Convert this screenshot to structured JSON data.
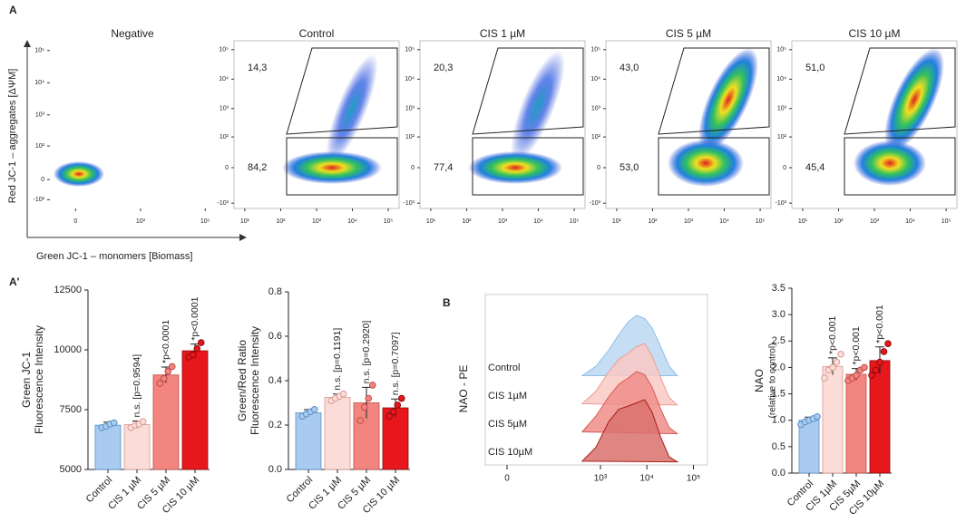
{
  "panel_labels": [
    "A",
    "A'",
    "B"
  ],
  "chart_data": [
    {
      "type": "flow",
      "title": "Negative",
      "xlabel": "Green JC-1 – monomers [Biomass]",
      "ylabel": "Red JC-1 – aggregates [ΔΨM]",
      "xscale": "biex",
      "xlim": [
        -200,
        200000
      ],
      "ylim": [
        -300,
        200000
      ],
      "xticks": [
        0,
        {
          "value": 1000,
          "label": "10³"
        },
        {
          "value": 100000,
          "label": "10⁵"
        }
      ],
      "yticks": [
        {
          "value": -100,
          "label": "-10²"
        },
        0,
        {
          "value": 100,
          "label": "10²"
        },
        {
          "value": 1000,
          "label": "10³"
        },
        {
          "value": 10000,
          "label": "10⁴"
        },
        {
          "value": 100000,
          "label": "10⁵"
        }
      ]
    },
    {
      "type": "flow",
      "title": "Control",
      "xscale": "log",
      "xlim": [
        5,
        200000
      ],
      "ylim": [
        -2000,
        200000
      ],
      "xticks": [
        {
          "value": 10,
          "label": "10¹"
        },
        {
          "value": 100,
          "label": "10²"
        },
        {
          "value": 1000,
          "label": "10³"
        },
        {
          "value": 10000,
          "label": "10⁴"
        },
        {
          "value": 100000,
          "label": "10⁵"
        }
      ],
      "yticks": [
        {
          "value": -1000,
          "label": "-10³"
        },
        0,
        {
          "value": 100,
          "label": "10²"
        },
        {
          "value": 1000,
          "label": "10³"
        },
        {
          "value": 10000,
          "label": "10⁴"
        },
        {
          "value": 100000,
          "label": "10⁵"
        }
      ],
      "gates": {
        "values": [
          14.3,
          84.2
        ],
        "value_labels": [
          "14,3",
          "84,2"
        ]
      }
    },
    {
      "type": "flow",
      "title": "CIS 1 µM",
      "xscale": "log",
      "xlim": [
        5,
        200000
      ],
      "ylim": [
        -2000,
        200000
      ],
      "xticks": [
        {
          "value": 10,
          "label": "10¹"
        },
        {
          "value": 100,
          "label": "10²"
        },
        {
          "value": 1000,
          "label": "10³"
        },
        {
          "value": 10000,
          "label": "10⁴"
        },
        {
          "value": 100000,
          "label": "10⁵"
        }
      ],
      "yticks": [
        {
          "value": -1000,
          "label": "-10³"
        },
        0,
        {
          "value": 100,
          "label": "10²"
        },
        {
          "value": 1000,
          "label": "10³"
        },
        {
          "value": 10000,
          "label": "10⁴"
        },
        {
          "value": 100000,
          "label": "10⁵"
        }
      ],
      "gates": {
        "values": [
          20.3,
          77.4
        ],
        "value_labels": [
          "20,3",
          "77,4"
        ]
      }
    },
    {
      "type": "flow",
      "title": "CIS 5 µM",
      "xscale": "log",
      "xlim": [
        5,
        200000
      ],
      "ylim": [
        -2000,
        200000
      ],
      "xticks": [
        {
          "value": 10,
          "label": "10¹"
        },
        {
          "value": 100,
          "label": "10²"
        },
        {
          "value": 1000,
          "label": "10³"
        },
        {
          "value": 10000,
          "label": "10⁴"
        },
        {
          "value": 100000,
          "label": "10⁵"
        }
      ],
      "yticks": [
        {
          "value": -1000,
          "label": "-10³"
        },
        0,
        {
          "value": 100,
          "label": "10²"
        },
        {
          "value": 1000,
          "label": "10³"
        },
        {
          "value": 10000,
          "label": "10⁴"
        },
        {
          "value": 100000,
          "label": "10⁵"
        }
      ],
      "gates": {
        "values": [
          43.0,
          53.0
        ],
        "value_labels": [
          "43,0",
          "53,0"
        ]
      }
    },
    {
      "type": "flow",
      "title": "CIS 10 µM",
      "xscale": "log",
      "xlim": [
        5,
        200000
      ],
      "ylim": [
        -2000,
        200000
      ],
      "xticks": [
        {
          "value": 10,
          "label": "10¹"
        },
        {
          "value": 100,
          "label": "10²"
        },
        {
          "value": 1000,
          "label": "10³"
        },
        {
          "value": 10000,
          "label": "10⁴"
        },
        {
          "value": 100000,
          "label": "10⁵"
        }
      ],
      "yticks": [
        {
          "value": -1000,
          "label": "-10³"
        },
        0,
        {
          "value": 100,
          "label": "10²"
        },
        {
          "value": 1000,
          "label": "10³"
        },
        {
          "value": 10000,
          "label": "10⁴"
        },
        {
          "value": 100000,
          "label": "10⁵"
        }
      ],
      "gates": {
        "values": [
          51.0,
          45.4
        ],
        "value_labels": [
          "51,0",
          "45,4"
        ]
      }
    },
    {
      "type": "bar",
      "ylabel": [
        "Green JC-1",
        "Fluorescence Intensity"
      ],
      "categories": [
        "Control",
        "CIS 1 µM",
        "CIS 5 µM",
        "CIS 10 µM"
      ],
      "values": [
        6850,
        6875,
        8950,
        9960
      ],
      "errors": [
        130,
        150,
        330,
        280
      ],
      "points": [
        [
          6750,
          6800,
          6900,
          6950
        ],
        [
          6750,
          6850,
          6900,
          7000
        ],
        [
          8600,
          8800,
          9100,
          9300
        ],
        [
          9700,
          9800,
          10050,
          10300
        ]
      ],
      "colors": [
        "#a9cbef",
        "#fbdcd8",
        "#f28580",
        "#e8171c"
      ],
      "annotations": [
        null,
        "n.s. [p=0.9594]",
        "*p<0.0001",
        "*p<0.0001"
      ],
      "ylim": [
        5000,
        12500
      ],
      "yticks": [
        5000,
        7500,
        10000,
        12500
      ]
    },
    {
      "type": "bar",
      "ylabel": [
        "Green/Red Ratio",
        "Fluorescence Intensity"
      ],
      "categories": [
        "Control",
        "CIS 1 µM",
        "CIS 5 µM",
        "CIS 10 µM"
      ],
      "values": [
        0.255,
        0.325,
        0.3,
        0.2775
      ],
      "errors": [
        0.015,
        0.015,
        0.07,
        0.04
      ],
      "points": [
        [
          0.24,
          0.25,
          0.26,
          0.27
        ],
        [
          0.31,
          0.32,
          0.33,
          0.34
        ],
        [
          0.22,
          0.28,
          0.32,
          0.38
        ],
        [
          0.24,
          0.26,
          0.29,
          0.32
        ]
      ],
      "colors": [
        "#a9cbef",
        "#fbdcd8",
        "#f28580",
        "#e8171c"
      ],
      "annotations": [
        null,
        "n.s. [p=0.1191]",
        "n.s. [p=0.2920]",
        "n.s. [p=0.7097]"
      ],
      "ylim": [
        0,
        0.8
      ],
      "yticks": [
        {
          "value": 0,
          "label": "0.0"
        },
        0.2,
        0.4,
        0.6,
        0.8
      ]
    },
    {
      "type": "ridgeline",
      "ylabel": "NAO - PE",
      "xlim": [
        -50,
        200000
      ],
      "ylim": [
        0,
        1
      ],
      "xticks": [
        0,
        {
          "value": 1000,
          "label": "10³"
        },
        {
          "value": 10000,
          "label": "10⁴"
        },
        {
          "value": 100000,
          "label": "10⁵"
        }
      ],
      "x": [
        400,
        800,
        1500,
        2500,
        4000,
        6000,
        9000,
        13000,
        20000,
        30000,
        45000
      ],
      "series": [
        {
          "name": "Control",
          "color": "#bcd8f2",
          "values": [
            0.05,
            0.2,
            0.45,
            0.7,
            0.9,
            1.0,
            0.95,
            0.8,
            0.5,
            0.2,
            0.05
          ]
        },
        {
          "name": "CIS 1µM",
          "color": "#f9c9c4",
          "values": [
            0.05,
            0.25,
            0.55,
            0.75,
            0.85,
            0.95,
            1.0,
            0.8,
            0.45,
            0.15,
            0.03
          ]
        },
        {
          "name": "CIS 5µM",
          "color": "#f08e89",
          "values": [
            0.05,
            0.3,
            0.6,
            0.8,
            0.9,
            1.0,
            0.95,
            0.75,
            0.4,
            0.12,
            0.02
          ]
        },
        {
          "name": "CIS 10µM",
          "color": "#d9716d",
          "values": [
            0.03,
            0.25,
            0.65,
            0.85,
            0.9,
            0.95,
            1.0,
            0.8,
            0.4,
            0.1,
            0.02
          ]
        }
      ]
    },
    {
      "type": "bar",
      "ylabel": [
        "NAO",
        "(relative to control)"
      ],
      "categories": [
        "Control",
        "CIS 1µM",
        "CIS 5µM",
        "CIS 10µM"
      ],
      "values": [
        1.0,
        2.02,
        1.87,
        2.13
      ],
      "errors": [
        0.06,
        0.16,
        0.11,
        0.26
      ],
      "points": [
        [
          0.92,
          0.97,
          1.0,
          1.03,
          1.07
        ],
        [
          1.8,
          1.95,
          2.0,
          2.1,
          2.25
        ],
        [
          1.75,
          1.8,
          1.85,
          1.95,
          2.0
        ],
        [
          1.85,
          1.95,
          2.1,
          2.3,
          2.45
        ]
      ],
      "colors": [
        "#a9cbef",
        "#fbdcd8",
        "#f28580",
        "#e8171c"
      ],
      "annotations": [
        null,
        "*p<0.001",
        "*p<0.001",
        "*p<0.001"
      ],
      "ylim": [
        0,
        3.5
      ],
      "yticks": [
        {
          "value": 0,
          "label": "0.0"
        },
        0.5,
        {
          "value": 1,
          "label": "1.0"
        },
        1.5,
        {
          "value": 2,
          "label": "2.0"
        },
        2.5,
        {
          "value": 3,
          "label": "3.0"
        },
        3.5
      ]
    }
  ]
}
